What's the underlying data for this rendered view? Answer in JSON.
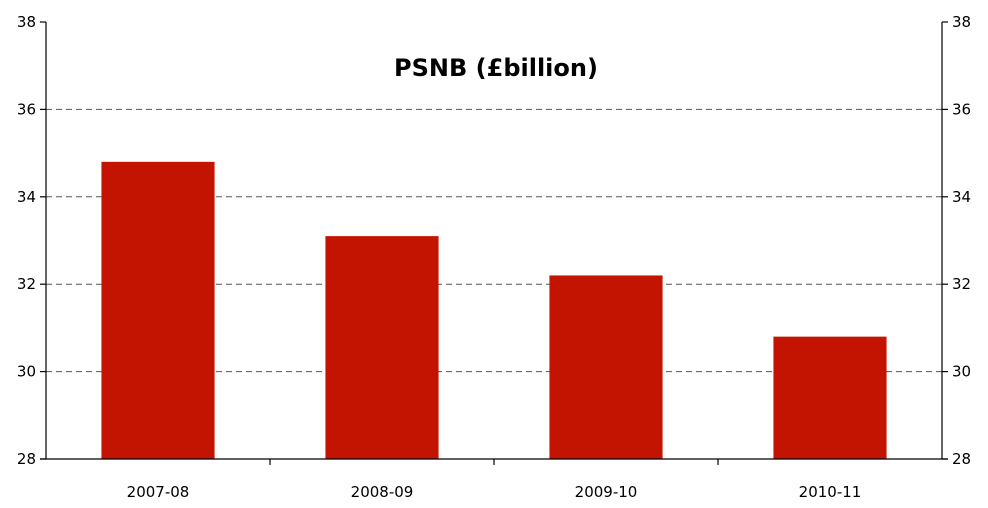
{
  "chart_data": {
    "type": "bar",
    "title": "PSNB (£billion)",
    "xlabel": "",
    "ylabel": "",
    "categories": [
      "2007-08",
      "2008-09",
      "2009-10",
      "2010-11"
    ],
    "values": [
      34.8,
      33.1,
      32.2,
      30.8
    ],
    "ylim": [
      28,
      38
    ],
    "yticks": [
      28,
      30,
      32,
      34,
      36,
      38
    ],
    "secondary_axis": "right (mirrors left)",
    "grid": "horizontal dashed",
    "legend": "none",
    "colors": {
      "bar": "#c21400",
      "grid": "#555555",
      "axis": "#000000"
    }
  }
}
